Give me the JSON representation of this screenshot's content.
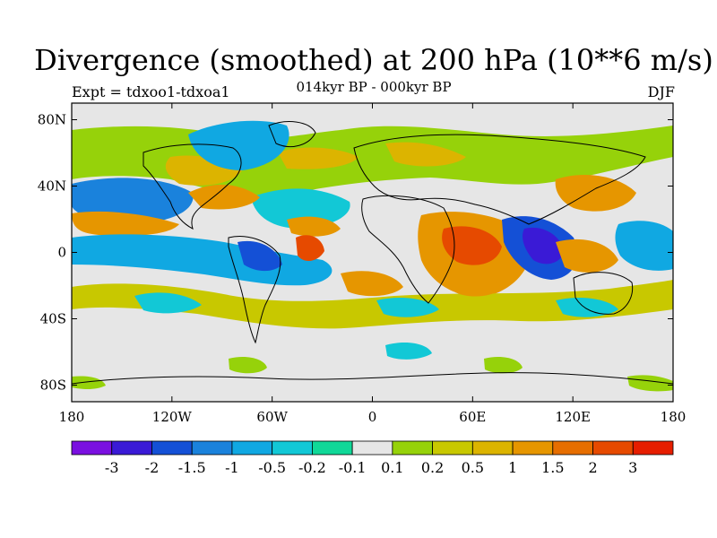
{
  "title": "Divergence (smoothed) at 200 hPa (10**6 m/s)",
  "subtitle": "014kyr BP - 000kyr BP",
  "left_label": "Expt = tdxoo1-tdxoa1",
  "right_label": "DJF",
  "map": {
    "lon_ticks": [
      "180",
      "120W",
      "60W",
      "0",
      "60E",
      "120E",
      "180"
    ],
    "lat_ticks": [
      "80N",
      "40N",
      "0",
      "40S",
      "80S"
    ],
    "lon_range": [
      -180,
      180
    ],
    "lat_range": [
      -90,
      90
    ],
    "background": "#e6e6e6"
  },
  "colorbar": {
    "colors": [
      "#7a10e0",
      "#3a1ad6",
      "#1450d6",
      "#1a82dc",
      "#10a8e2",
      "#12c8d6",
      "#10d898",
      "#e6e6e6",
      "#96d20a",
      "#c8c800",
      "#dcb400",
      "#e69600",
      "#e66e00",
      "#e64a00",
      "#e61e00"
    ],
    "labels": [
      "-3",
      "-2",
      "-1.5",
      "-1",
      "-0.5",
      "-0.2",
      "-0.1",
      "0.1",
      "0.2",
      "0.5",
      "1",
      "1.5",
      "2",
      "3"
    ]
  }
}
